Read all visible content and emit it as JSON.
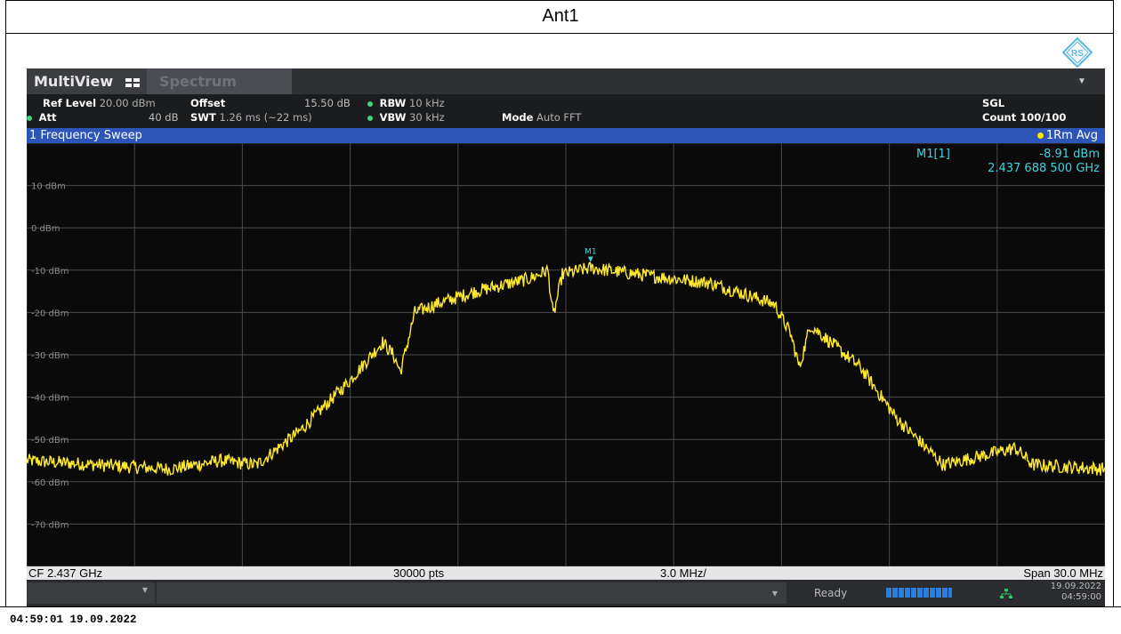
{
  "page": {
    "title": "Ant1",
    "timestamp": "04:59:01  19.09.2022"
  },
  "tabs": {
    "multiview": "MultiView",
    "spectrum": "Spectrum"
  },
  "settings": {
    "ref_level_label": "Ref Level",
    "ref_level_value": "20.00 dBm",
    "offset_label": "Offset",
    "offset_value": "15.50 dB",
    "rbw_label": "RBW",
    "rbw_value": "10 kHz",
    "att_label": "Att",
    "att_value": "40 dB",
    "swt_label": "SWT",
    "swt_value": "1.26 ms (~22 ms)",
    "vbw_label": "VBW",
    "vbw_value": "30 kHz",
    "mode_label": "Mode",
    "mode_value": "Auto FFT",
    "sgl": "SGL",
    "count": "Count 100/100"
  },
  "window": {
    "title": "1 Frequency Sweep",
    "trace": "1Rm Avg"
  },
  "marker": {
    "name": "M1",
    "label": "M1[1]",
    "level": "-8.91 dBm",
    "freq": "2.437 688 500 GHz"
  },
  "bottom": {
    "cf": "CF 2.437 GHz",
    "pts": "30000 pts",
    "div": "3.0 MHz/",
    "span": "Span 30.0 MHz"
  },
  "status": {
    "ready": "Ready",
    "date": "19.09.2022",
    "time": "04:59:00"
  },
  "colors": {
    "trace": "#ffe92e",
    "marker": "#3fd3e0",
    "grid": "#4a4a4a",
    "title_bar": "#2d55b8"
  },
  "chart_data": {
    "type": "line",
    "title": "1 Frequency Sweep",
    "xlabel": "",
    "ylabel": "",
    "xlim": [
      2.422,
      2.452
    ],
    "ylim": [
      -80,
      20
    ],
    "y_ticks": [
      10,
      0,
      -10,
      -20,
      -30,
      -40,
      -50,
      -60,
      -70
    ],
    "y_tick_labels": [
      "10 dBm",
      "0 dBm",
      "-10 dBm",
      "-20 dBm",
      "-30 dBm",
      "-40 dBm",
      "-50 dBm",
      "-60 dBm",
      "-70 dBm"
    ],
    "series": [
      {
        "name": "1Rm Avg",
        "x": [
          2.422,
          2.424,
          2.426,
          2.4274,
          2.4284,
          2.4296,
          2.431,
          2.4319,
          2.4322,
          2.4324,
          2.4328,
          2.4334,
          2.4345,
          2.436,
          2.4365,
          2.43665,
          2.4369,
          2.43769,
          2.439,
          2.441,
          2.4421,
          2.4428,
          2.44325,
          2.4435,
          2.4438,
          2.4452,
          2.4462,
          2.4475,
          2.4495,
          2.45,
          2.452
        ],
        "y": [
          -55,
          -56,
          -57,
          -55,
          -56,
          -48,
          -36,
          -27,
          -30,
          -34,
          -20,
          -18,
          -15,
          -12,
          -10,
          -21,
          -11,
          -9.5,
          -11,
          -13,
          -16,
          -18,
          -25,
          -33,
          -23,
          -33,
          -45,
          -56,
          -52,
          -56,
          -57
        ]
      }
    ],
    "markers": [
      {
        "name": "M1",
        "x": 2.4376885,
        "y": -8.91
      }
    ]
  }
}
